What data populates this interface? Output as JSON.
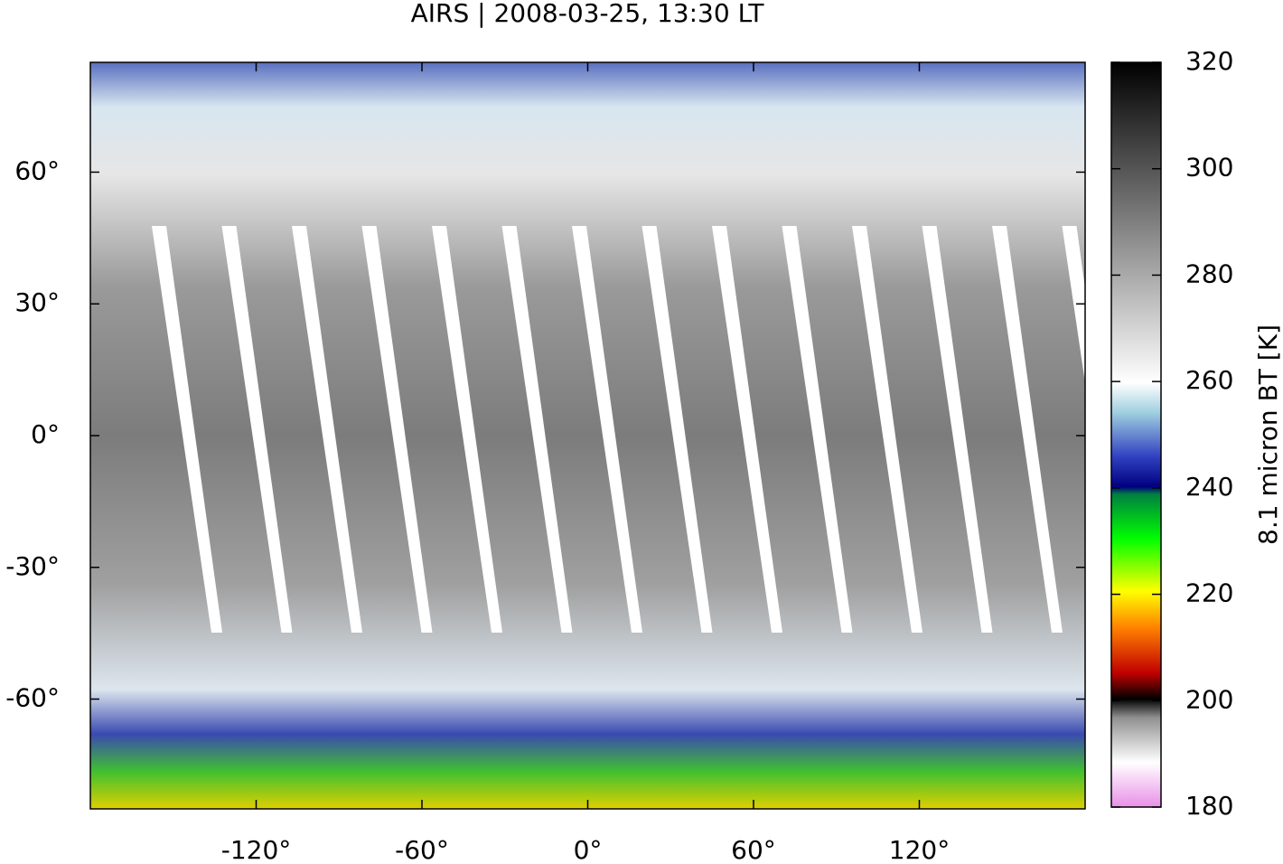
{
  "chart_data": {
    "type": "map",
    "title": "AIRS | 2008-03-25, 13:30 LT",
    "xlim": [
      -180,
      180
    ],
    "xticks": [
      {
        "value": -120,
        "label": "-120°"
      },
      {
        "value": -60,
        "label": "-60°"
      },
      {
        "value": 0,
        "label": "0°"
      },
      {
        "value": 60,
        "label": "60°"
      },
      {
        "value": 120,
        "label": "120°"
      }
    ],
    "ylim": [
      -85,
      85
    ],
    "yticks": [
      {
        "value": 60,
        "label": "60°"
      },
      {
        "value": 30,
        "label": "30°"
      },
      {
        "value": 0,
        "label": "0°"
      },
      {
        "value": -30,
        "label": "-30°"
      },
      {
        "value": -60,
        "label": "-60°"
      }
    ],
    "colorbar": {
      "label": "8.1 micron BT [K]",
      "lim": [
        180,
        320
      ],
      "ticks": [
        180,
        200,
        220,
        240,
        260,
        280,
        300,
        320
      ]
    }
  }
}
